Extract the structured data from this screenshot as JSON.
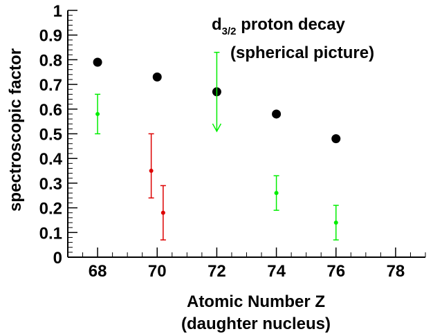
{
  "chart_data": {
    "type": "scatter",
    "title": "d3/2 proton decay",
    "title_main": "d",
    "title_sub": "3/2",
    "title_rest": " proton decay",
    "subtitle": "(spherical picture)",
    "xlabel_line1": "Atomic Number Z",
    "xlabel_line2": "(daughter nucleus)",
    "ylabel": "spectroscopic factor",
    "xlim": [
      67,
      79
    ],
    "ylim": [
      0,
      1
    ],
    "x_ticks": [
      "68",
      "70",
      "72",
      "74",
      "76",
      "78"
    ],
    "y_ticks": [
      "0",
      "0.1",
      "0.2",
      "0.3",
      "0.4",
      "0.5",
      "0.6",
      "0.7",
      "0.8",
      "0.9",
      "1"
    ],
    "grid": false,
    "series": [
      {
        "style": "large black dots",
        "color": "#000000",
        "points": [
          {
            "x": 68,
            "y": 0.79
          },
          {
            "x": 70,
            "y": 0.73
          },
          {
            "x": 72,
            "y": 0.67
          },
          {
            "x": 74,
            "y": 0.58
          },
          {
            "x": 76,
            "y": 0.48
          }
        ]
      },
      {
        "style": "green points with error bars",
        "color": "#00ee00",
        "points": [
          {
            "x": 68,
            "y": 0.58,
            "lo": 0.5,
            "hi": 0.66
          },
          {
            "x": 74,
            "y": 0.26,
            "lo": 0.19,
            "hi": 0.33
          },
          {
            "x": 76,
            "y": 0.14,
            "lo": 0.07,
            "hi": 0.21
          }
        ],
        "upper_limits": [
          {
            "x": 72,
            "from": 0.83,
            "to": 0.51
          }
        ]
      },
      {
        "style": "red points with error bars",
        "color": "#dd0000",
        "points": [
          {
            "x": 69.8,
            "y": 0.35,
            "lo": 0.24,
            "hi": 0.5
          },
          {
            "x": 70.2,
            "y": 0.18,
            "lo": 0.07,
            "hi": 0.29
          }
        ]
      }
    ]
  }
}
